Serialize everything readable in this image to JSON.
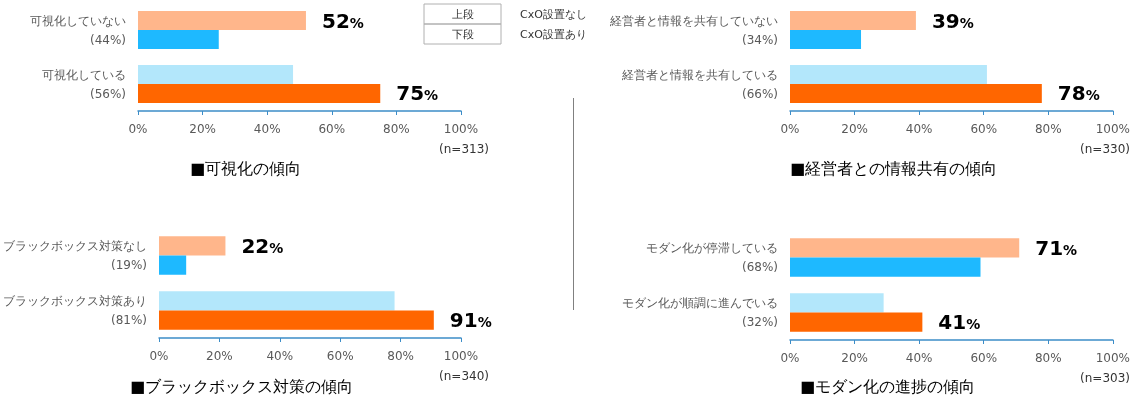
{
  "chart_data": [
    {
      "type": "bar",
      "orientation": "horizontal",
      "title": "■可視化の傾向",
      "categories": [
        "可視化していない\n(44%)",
        "可視化している\n(56%)"
      ],
      "series": [
        {
          "name": "CxO設置なし",
          "colors": [
            "#ffb68b",
            "#b3e7fb"
          ],
          "values": [
            52,
            48
          ],
          "value_labels": [
            "52%",
            null
          ]
        },
        {
          "name": "CxO設置あり",
          "colors": [
            "#1eb9ff",
            "#ff6600"
          ],
          "values": [
            25,
            75
          ],
          "value_labels": [
            null,
            "75%"
          ]
        }
      ],
      "xlim": [
        0,
        100
      ],
      "xticks": [
        {
          "value": 0,
          "label": "0%"
        },
        {
          "value": 20,
          "label": "20%"
        },
        {
          "value": 40,
          "label": "40%"
        },
        {
          "value": 60,
          "label": "60%"
        },
        {
          "value": 80,
          "label": "80%"
        },
        {
          "value": 100,
          "label": "100%"
        }
      ],
      "legend": "top right",
      "annotations": [
        "上段",
        "下段",
        "(n=313)"
      ],
      "grid": false
    },
    {
      "type": "bar",
      "orientation": "horizontal",
      "title": "■経営者との情報共有の傾向",
      "categories": [
        "経営者と情報を共有していない\n(34%)",
        "経営者と情報を共有している\n(66%)"
      ],
      "series": [
        {
          "colors": [
            "#ffb68b",
            "#b3e7fb"
          ],
          "values": [
            39,
            61
          ],
          "value_labels": [
            "39%",
            null
          ]
        },
        {
          "colors": [
            "#1eb9ff",
            "#ff6600"
          ],
          "values": [
            22,
            78
          ],
          "value_labels": [
            null,
            "78%"
          ]
        }
      ],
      "xlim": [
        0,
        100
      ],
      "xticks": [
        {
          "value": 0,
          "label": "0%"
        },
        {
          "value": 20,
          "label": "20%"
        },
        {
          "value": 40,
          "label": "40%"
        },
        {
          "value": 60,
          "label": "60%"
        },
        {
          "value": 80,
          "label": "80%"
        },
        {
          "value": 100,
          "label": "100%"
        }
      ],
      "annotations": [
        "(n=330)"
      ],
      "grid": false
    },
    {
      "type": "bar",
      "orientation": "horizontal",
      "title": "■ブラックボックス対策の傾向",
      "categories": [
        "ブラックボックス対策なし\n(19%)",
        "ブラックボックス対策あり\n(81%)"
      ],
      "series": [
        {
          "colors": [
            "#ffb68b",
            "#b3e7fb"
          ],
          "values": [
            22,
            78
          ],
          "value_labels": [
            "22%",
            null
          ]
        },
        {
          "colors": [
            "#1eb9ff",
            "#ff6600"
          ],
          "values": [
            9,
            91
          ],
          "value_labels": [
            null,
            "91%"
          ]
        }
      ],
      "xlim": [
        0,
        100
      ],
      "xticks": [
        {
          "value": 0,
          "label": "0%"
        },
        {
          "value": 20,
          "label": "20%"
        },
        {
          "value": 40,
          "label": "40%"
        },
        {
          "value": 60,
          "label": "60%"
        },
        {
          "value": 80,
          "label": "80%"
        },
        {
          "value": 100,
          "label": "100%"
        }
      ],
      "annotations": [
        "(n=340)"
      ],
      "grid": false
    },
    {
      "type": "bar",
      "orientation": "horizontal",
      "title": "■モダン化の進捗の傾向",
      "categories": [
        "モダン化が停滞している\n(68%)",
        "モダン化が順調に進んでいる\n(32%)"
      ],
      "series": [
        {
          "colors": [
            "#ffb68b",
            "#b3e7fb"
          ],
          "values": [
            71,
            29
          ],
          "value_labels": [
            "71%",
            null
          ]
        },
        {
          "colors": [
            "#1eb9ff",
            "#ff6600"
          ],
          "values": [
            59,
            41
          ],
          "value_labels": [
            null,
            "41%"
          ]
        }
      ],
      "xlim": [
        0,
        100
      ],
      "xticks": [
        {
          "value": 0,
          "label": "0%"
        },
        {
          "value": 20,
          "label": "20%"
        },
        {
          "value": 40,
          "label": "40%"
        },
        {
          "value": 60,
          "label": "60%"
        },
        {
          "value": 80,
          "label": "80%"
        },
        {
          "value": 100,
          "label": "100%"
        }
      ],
      "annotations": [
        "(n=303)"
      ],
      "grid": false
    }
  ]
}
